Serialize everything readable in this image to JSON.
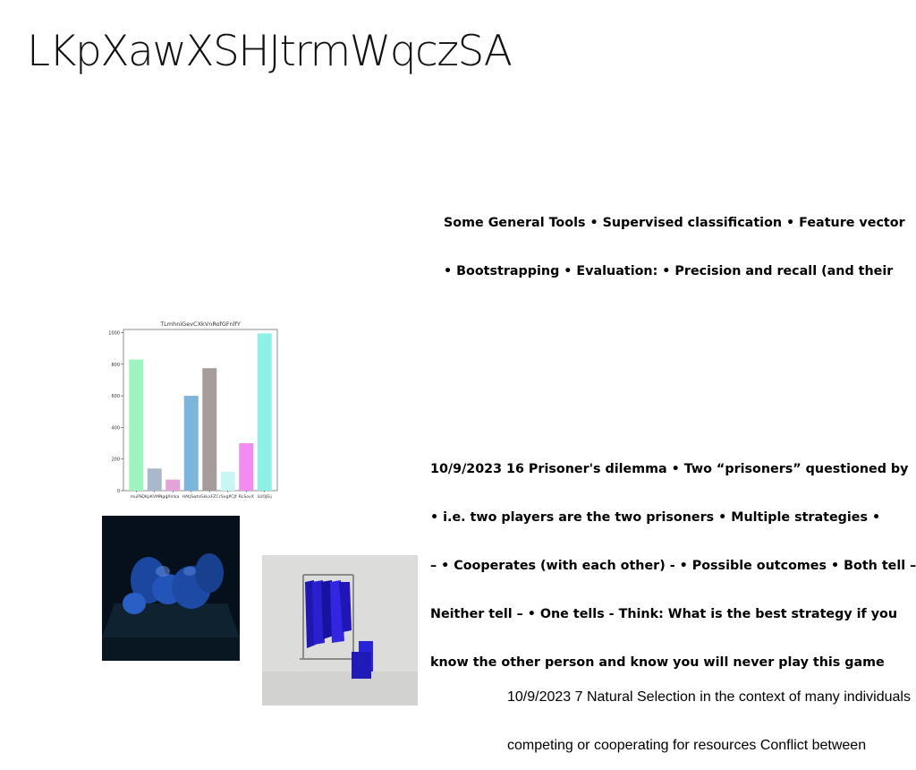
{
  "page": {
    "title": "LKpXawXSHJtrmWqczSA"
  },
  "blocks": [
    {
      "lines": [
        "Some General Tools • Supervised classification • Feature vector",
        "• Bootstrapping • Evaluation: • Precision and recall (and their"
      ]
    },
    {
      "lines": [
        "10/9/2023 16 Prisoner's dilemma • Two “prisoners” questioned by",
        "• i.e. two players are the two prisoners • Multiple strategies •",
        "– • Cooperates (with each other) - • Possible outcomes • Both tell –",
        "Neither tell – • One tells - Think: What is the best strategy if you",
        "know the other person and know you will never play this game"
      ]
    },
    {
      "lines": [
        "10/9/2023 7 Natural Selection in the context of many individuals",
        "competing or cooperating for resources Conflict between"
      ]
    }
  ],
  "images": {
    "photo1": {
      "description_icon": "photo-blue-fruits"
    },
    "photo2": {
      "description_icon": "photo-clothing-rack"
    }
  },
  "chart_data": {
    "type": "bar",
    "title": "TLmhniGevCXkVnRofGFnlfY",
    "categories": [
      "muPS",
      "QKpKVMNgq",
      "jXmka",
      "HAtjSwts",
      "GkkxFZC",
      "rSxgPCJf",
      "RLSovX",
      "LUOJEij"
    ],
    "values": [
      830,
      140,
      70,
      600,
      775,
      120,
      300,
      995
    ],
    "colors": [
      "#9ef3c0",
      "#aab8cc",
      "#e4a3d8",
      "#7cb4dc",
      "#a79c9c",
      "#c8f6f3",
      "#f28cf0",
      "#8ef0e6"
    ],
    "yticks": [
      0,
      200,
      400,
      600,
      800,
      1000
    ],
    "ylim": [
      0,
      1020
    ],
    "xlabel": "",
    "ylabel": "",
    "grid": false
  }
}
